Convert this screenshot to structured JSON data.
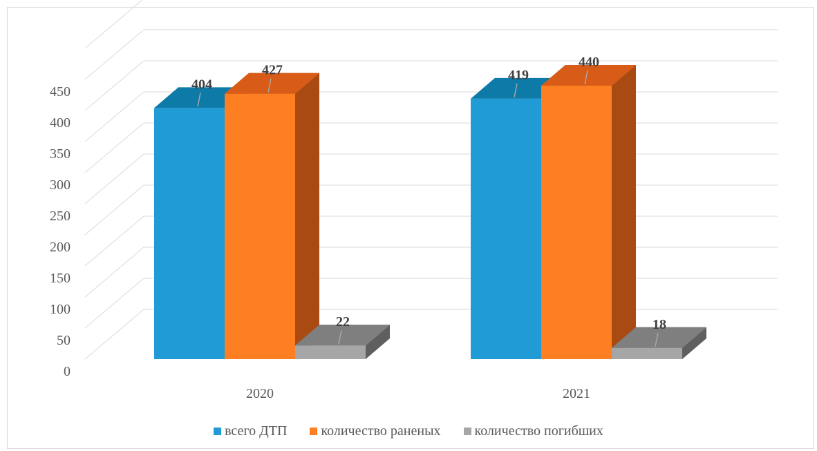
{
  "chart_data": {
    "type": "bar",
    "three_d": true,
    "categories": [
      "2020",
      "2021"
    ],
    "series": [
      {
        "name": "всего ДТП",
        "values": [
          404,
          419
        ],
        "color": "#219bd6",
        "top_color": "#0e7aa8",
        "side_color": "#0b5e83"
      },
      {
        "name": "количество раненых",
        "values": [
          427,
          440
        ],
        "color": "#fd7f22",
        "top_color": "#d85c18",
        "side_color": "#a94a12"
      },
      {
        "name": "количество погибших",
        "values": [
          22,
          18
        ],
        "color": "#a6a6a6",
        "top_color": "#7f7f7f",
        "side_color": "#5f5f5f"
      }
    ],
    "yticks": [
      "0",
      "50",
      "100",
      "150",
      "200",
      "250",
      "300",
      "350",
      "400",
      "450"
    ],
    "ylim": [
      0,
      450
    ],
    "grid": true,
    "legend_position": "bottom",
    "data_labels": true
  }
}
